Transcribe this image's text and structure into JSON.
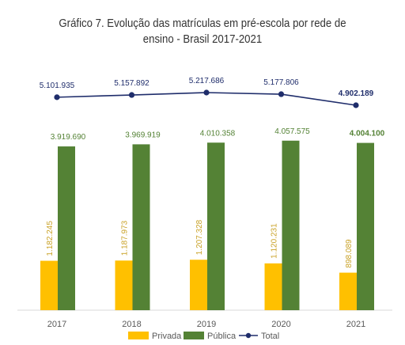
{
  "title": {
    "line1": "Gráfico 7. Evolução das matrículas em pré-escola por rede de",
    "line2": "ensino - Brasil 2017-2021"
  },
  "chart_data": {
    "type": "bar",
    "categories": [
      "2017",
      "2018",
      "2019",
      "2020",
      "2021"
    ],
    "series": [
      {
        "name": "Privada",
        "type": "bar",
        "color": "#FFC000",
        "values": [
          1182245,
          1187973,
          1207328,
          1120231,
          898089
        ],
        "labels": [
          "1.182.245",
          "1.187.973",
          "1.207.328",
          "1.120.231",
          "898.089"
        ]
      },
      {
        "name": "Pública",
        "type": "bar",
        "color": "#548235",
        "values": [
          3919690,
          3969919,
          4010358,
          4057575,
          4004100
        ],
        "labels": [
          "3.919.690",
          "3.969.919",
          "4.010.358",
          "4.057.575",
          "4.004.100"
        ]
      },
      {
        "name": "Total",
        "type": "line",
        "color": "#1F2D6B",
        "values": [
          5101935,
          5157892,
          5217686,
          5177806,
          4902189
        ],
        "labels": [
          "5.101.935",
          "5.157.892",
          "5.217.686",
          "5.177.806",
          "4.902.189"
        ]
      }
    ],
    "bold_last_label": true,
    "legend": "bottom",
    "grid": false
  }
}
